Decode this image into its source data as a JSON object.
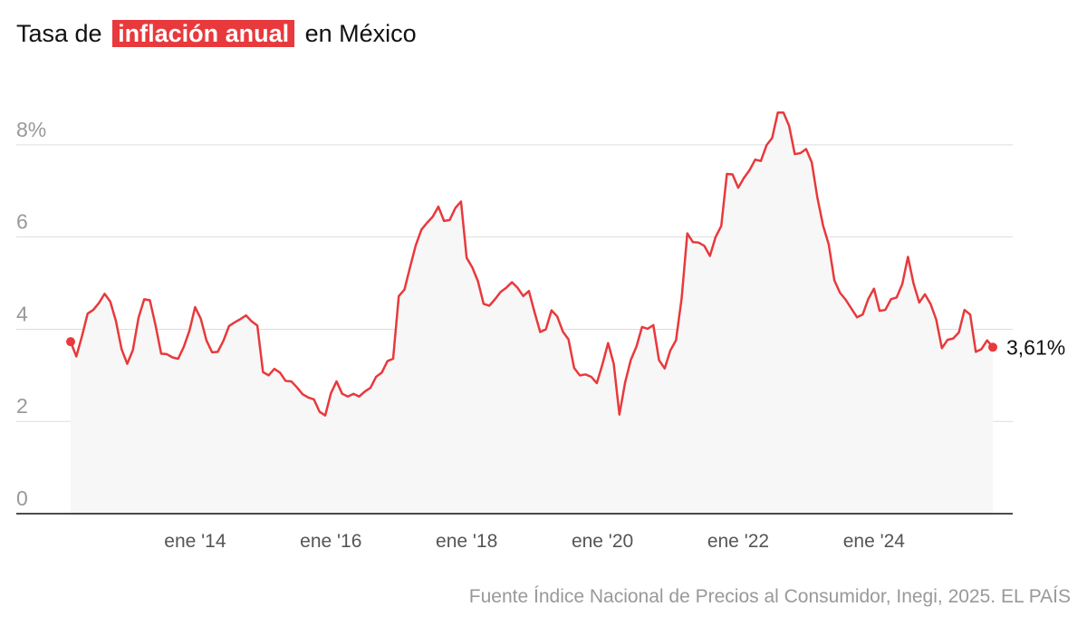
{
  "chart_data": {
    "type": "line",
    "title": {
      "before": "Tasa de",
      "highlight": "inflación anual",
      "after": "en México"
    },
    "source": "Fuente Índice Nacional de Precios al Consumidor, Inegi, 2025. EL PAÍS",
    "x": [
      "2012-03",
      "2012-04",
      "2012-05",
      "2012-06",
      "2012-07",
      "2012-08",
      "2012-09",
      "2012-10",
      "2012-11",
      "2012-12",
      "2013-01",
      "2013-02",
      "2013-03",
      "2013-04",
      "2013-05",
      "2013-06",
      "2013-07",
      "2013-08",
      "2013-09",
      "2013-10",
      "2013-11",
      "2013-12",
      "2014-01",
      "2014-02",
      "2014-03",
      "2014-04",
      "2014-05",
      "2014-06",
      "2014-07",
      "2014-08",
      "2014-09",
      "2014-10",
      "2014-11",
      "2014-12",
      "2015-01",
      "2015-02",
      "2015-03",
      "2015-04",
      "2015-05",
      "2015-06",
      "2015-07",
      "2015-08",
      "2015-09",
      "2015-10",
      "2015-11",
      "2015-12",
      "2016-01",
      "2016-02",
      "2016-03",
      "2016-04",
      "2016-05",
      "2016-06",
      "2016-07",
      "2016-08",
      "2016-09",
      "2016-10",
      "2016-11",
      "2016-12",
      "2017-01",
      "2017-02",
      "2017-03",
      "2017-04",
      "2017-05",
      "2017-06",
      "2017-07",
      "2017-08",
      "2017-09",
      "2017-10",
      "2017-11",
      "2017-12",
      "2018-01",
      "2018-02",
      "2018-03",
      "2018-04",
      "2018-05",
      "2018-06",
      "2018-07",
      "2018-08",
      "2018-09",
      "2018-10",
      "2018-11",
      "2018-12",
      "2019-01",
      "2019-02",
      "2019-03",
      "2019-04",
      "2019-05",
      "2019-06",
      "2019-07",
      "2019-08",
      "2019-09",
      "2019-10",
      "2019-11",
      "2019-12",
      "2020-01",
      "2020-02",
      "2020-03",
      "2020-04",
      "2020-05",
      "2020-06",
      "2020-07",
      "2020-08",
      "2020-09",
      "2020-10",
      "2020-11",
      "2020-12",
      "2021-01",
      "2021-02",
      "2021-03",
      "2021-04",
      "2021-05",
      "2021-06",
      "2021-07",
      "2021-08",
      "2021-09",
      "2021-10",
      "2021-11",
      "2021-12",
      "2022-01",
      "2022-02",
      "2022-03",
      "2022-04",
      "2022-05",
      "2022-06",
      "2022-07",
      "2022-08",
      "2022-09",
      "2022-10",
      "2022-11",
      "2022-12",
      "2023-01",
      "2023-02",
      "2023-03",
      "2023-04",
      "2023-05",
      "2023-06",
      "2023-07",
      "2023-08",
      "2023-09",
      "2023-10",
      "2023-11",
      "2023-12",
      "2024-01",
      "2024-02",
      "2024-03",
      "2024-04",
      "2024-05",
      "2024-06",
      "2024-07",
      "2024-08",
      "2024-09",
      "2024-10",
      "2024-11",
      "2024-12",
      "2025-01",
      "2025-02",
      "2025-03",
      "2025-04",
      "2025-05",
      "2025-06",
      "2025-07",
      "2025-08",
      "2025-09",
      "2025-10"
    ],
    "series": [
      {
        "color": "#e8393c",
        "values": [
          3.73,
          3.41,
          3.85,
          4.34,
          4.42,
          4.57,
          4.77,
          4.6,
          4.18,
          3.57,
          3.25,
          3.55,
          4.25,
          4.65,
          4.63,
          4.09,
          3.47,
          3.46,
          3.39,
          3.36,
          3.62,
          3.97,
          4.48,
          4.23,
          3.76,
          3.5,
          3.51,
          3.75,
          4.07,
          4.15,
          4.22,
          4.3,
          4.17,
          4.08,
          3.07,
          3.0,
          3.14,
          3.06,
          2.88,
          2.87,
          2.74,
          2.59,
          2.52,
          2.48,
          2.21,
          2.13,
          2.61,
          2.87,
          2.6,
          2.54,
          2.6,
          2.54,
          2.65,
          2.73,
          2.97,
          3.06,
          3.31,
          3.36,
          4.72,
          4.86,
          5.35,
          5.82,
          6.16,
          6.31,
          6.44,
          6.66,
          6.35,
          6.37,
          6.63,
          6.77,
          5.55,
          5.34,
          5.04,
          4.55,
          4.51,
          4.65,
          4.81,
          4.9,
          5.02,
          4.9,
          4.72,
          4.83,
          4.37,
          3.94,
          4.0,
          4.41,
          4.28,
          3.95,
          3.78,
          3.16,
          3.0,
          3.02,
          2.97,
          2.83,
          3.24,
          3.7,
          3.25,
          2.15,
          2.84,
          3.33,
          3.62,
          4.05,
          4.01,
          4.09,
          3.33,
          3.15,
          3.54,
          3.76,
          4.67,
          6.08,
          5.89,
          5.88,
          5.81,
          5.59,
          6.0,
          6.24,
          7.37,
          7.36,
          7.07,
          7.28,
          7.45,
          7.68,
          7.65,
          7.99,
          8.15,
          8.7,
          8.7,
          8.41,
          7.8,
          7.82,
          7.91,
          7.62,
          6.85,
          6.25,
          5.84,
          5.06,
          4.79,
          4.64,
          4.45,
          4.26,
          4.32,
          4.66,
          4.88,
          4.4,
          4.42,
          4.65,
          4.69,
          4.98,
          5.57,
          4.99,
          4.58,
          4.76,
          4.55,
          4.21,
          3.59,
          3.77,
          3.8,
          3.93,
          4.42,
          4.32,
          3.51,
          3.57,
          3.76,
          3.61
        ],
        "value_labels": [
          null,
          null,
          null,
          null,
          null,
          null,
          null,
          null,
          null,
          null,
          null,
          null,
          null,
          null,
          null,
          null,
          null,
          null,
          null,
          null,
          null,
          null,
          null,
          null,
          null,
          null,
          null,
          null,
          null,
          null,
          null,
          null,
          null,
          null,
          null,
          null,
          null,
          null,
          null,
          null,
          null,
          null,
          null,
          null,
          null,
          null,
          null,
          null,
          null,
          null,
          null,
          null,
          null,
          null,
          null,
          null,
          null,
          null,
          null,
          null,
          null,
          null,
          null,
          null,
          null,
          null,
          null,
          null,
          null,
          null,
          null,
          null,
          null,
          null,
          null,
          null,
          null,
          null,
          null,
          null,
          null,
          null,
          null,
          null,
          null,
          null,
          null,
          null,
          null,
          null,
          null,
          null,
          null,
          null,
          null,
          null,
          null,
          null,
          null,
          null,
          null,
          null,
          null,
          null,
          null,
          null,
          null,
          null,
          null,
          null,
          null,
          null,
          null,
          null,
          null,
          null,
          null,
          null,
          null,
          null,
          null,
          null,
          null,
          null,
          null,
          null,
          null,
          null,
          null,
          null,
          null,
          null,
          null,
          null,
          null,
          null,
          null,
          null,
          null,
          null,
          null,
          null,
          null,
          null,
          null,
          null,
          null,
          null,
          null,
          null,
          null,
          null,
          null,
          null,
          null,
          null,
          null,
          null,
          null,
          null,
          null,
          null,
          null,
          "3,61%"
        ]
      }
    ],
    "xlim": [
      "2012-03",
      "2025-10"
    ],
    "xticks": [
      {
        "value": "2014-01",
        "label": "ene '14"
      },
      {
        "value": "2016-01",
        "label": "ene '16"
      },
      {
        "value": "2018-01",
        "label": "ene '18"
      },
      {
        "value": "2020-01",
        "label": "ene '20"
      },
      {
        "value": "2022-01",
        "label": "ene '22"
      },
      {
        "value": "2024-01",
        "label": "ene '24"
      }
    ],
    "ylim": [
      0,
      9
    ],
    "yticks": [
      0,
      2,
      4,
      6,
      {
        "value": 8,
        "label": "8%"
      }
    ],
    "grid": true
  }
}
